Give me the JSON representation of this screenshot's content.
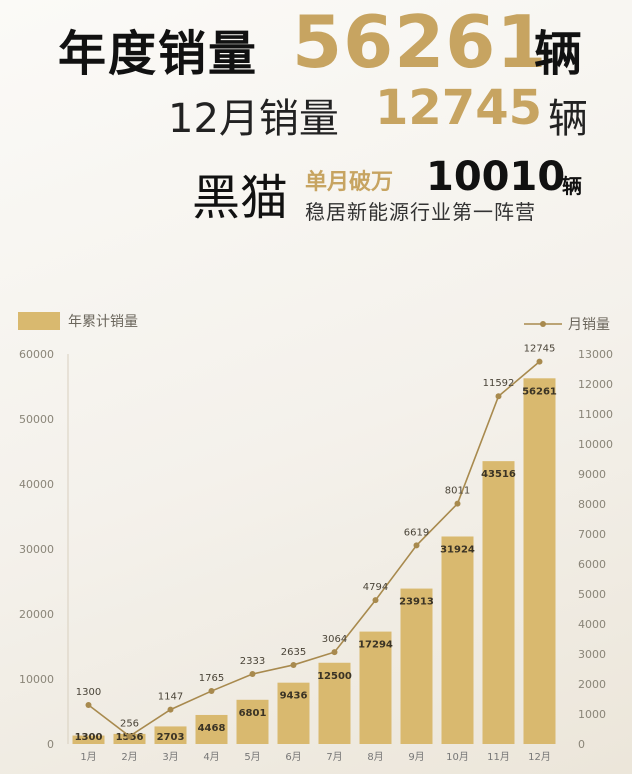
{
  "header": {
    "line1_label": "年度销量",
    "line1_value": "56261",
    "line1_unit": "辆",
    "line2_label": "12月销量",
    "line2_value": "12745",
    "line2_unit": "辆",
    "brand": "黑猫",
    "highlight": "单月破万",
    "highlight_value": "10010",
    "highlight_unit": "辆",
    "subtitle": "稳居新能源行业第一阵营"
  },
  "colors": {
    "gold": "#c7a461",
    "bar": "#d9b96f",
    "line": "#a88a4e",
    "text_dark": "#111111"
  },
  "chart_data": {
    "type": "bar",
    "categories": [
      "1月",
      "2月",
      "3月",
      "4月",
      "5月",
      "6月",
      "7月",
      "8月",
      "9月",
      "10月",
      "11月",
      "12月"
    ],
    "series": [
      {
        "name": "年累计销量",
        "type": "bar",
        "axis": "left",
        "values": [
          1300,
          1556,
          2703,
          4468,
          6801,
          9436,
          12500,
          17294,
          23913,
          31924,
          43516,
          56261
        ]
      },
      {
        "name": "月销量",
        "type": "line",
        "axis": "right",
        "values": [
          1300,
          256,
          1147,
          1765,
          2333,
          2635,
          3064,
          4794,
          6619,
          8011,
          11592,
          12745
        ]
      }
    ],
    "y_left": {
      "ylim": [
        0,
        60000
      ],
      "ticks": [
        0,
        10000,
        20000,
        30000,
        40000,
        50000,
        60000
      ]
    },
    "y_right": {
      "ylim": [
        0,
        13000
      ],
      "ticks": [
        0,
        1000,
        2000,
        3000,
        4000,
        5000,
        6000,
        7000,
        8000,
        9000,
        10000,
        11000,
        12000,
        13000
      ]
    },
    "legend": {
      "bar_position": "top-left",
      "line_position": "top-right"
    },
    "grid": false
  }
}
